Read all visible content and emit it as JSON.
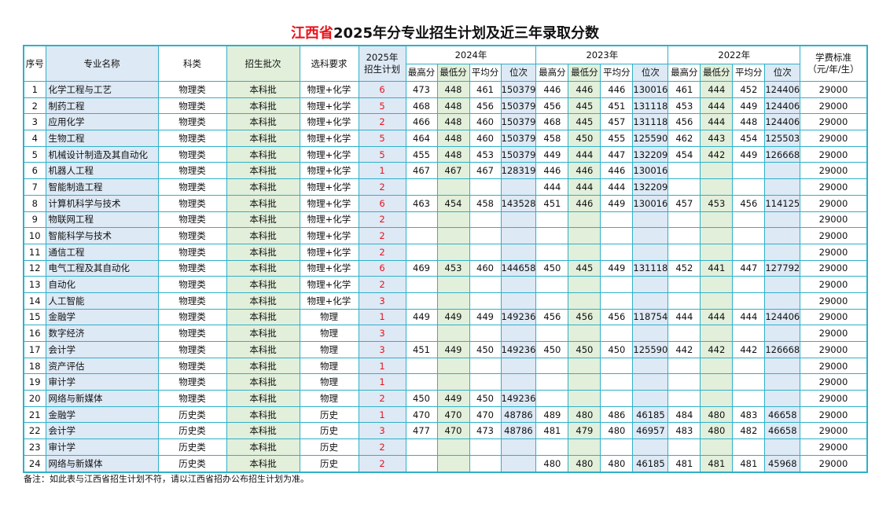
{
  "title": {
    "province": "江西省",
    "rest": "2025年分专业招生计划及近三年录取分数"
  },
  "headers": {
    "seq": "序号",
    "major": "专业名称",
    "category": "科类",
    "batch": "招生批次",
    "subjects": "选科要求",
    "plan_line1": "2025年",
    "plan_line2": "招生计划",
    "years": [
      "2024年",
      "2023年",
      "2022年"
    ],
    "sub": [
      "最高分",
      "最低分",
      "平均分",
      "位次"
    ],
    "fee_line1": "学费标准",
    "fee_line2": "（元/年/生）"
  },
  "colors": {
    "border": "#2fb0c8",
    "blue_fill": "#dde9f5",
    "green_fill": "#e2efda",
    "plan_text": "#e8141c"
  },
  "rows": [
    {
      "seq": "1",
      "major": "化学工程与工艺",
      "category": "物理类",
      "batch": "本科批",
      "subjects": "物理+化学",
      "plan": "6",
      "y2024": [
        "473",
        "448",
        "461",
        "150379"
      ],
      "y2023": [
        "446",
        "446",
        "446",
        "130016"
      ],
      "y2022": [
        "461",
        "444",
        "452",
        "124406"
      ],
      "fee": "29000"
    },
    {
      "seq": "2",
      "major": "制药工程",
      "category": "物理类",
      "batch": "本科批",
      "subjects": "物理+化学",
      "plan": "5",
      "y2024": [
        "468",
        "448",
        "456",
        "150379"
      ],
      "y2023": [
        "456",
        "445",
        "451",
        "131118"
      ],
      "y2022": [
        "453",
        "444",
        "449",
        "124406"
      ],
      "fee": "29000"
    },
    {
      "seq": "3",
      "major": "应用化学",
      "category": "物理类",
      "batch": "本科批",
      "subjects": "物理+化学",
      "plan": "2",
      "y2024": [
        "466",
        "448",
        "460",
        "150379"
      ],
      "y2023": [
        "468",
        "445",
        "457",
        "131118"
      ],
      "y2022": [
        "456",
        "444",
        "448",
        "124406"
      ],
      "fee": "29000"
    },
    {
      "seq": "4",
      "major": "生物工程",
      "category": "物理类",
      "batch": "本科批",
      "subjects": "物理+化学",
      "plan": "5",
      "y2024": [
        "464",
        "448",
        "460",
        "150379"
      ],
      "y2023": [
        "458",
        "450",
        "455",
        "125590"
      ],
      "y2022": [
        "462",
        "443",
        "454",
        "125503"
      ],
      "fee": "29000"
    },
    {
      "seq": "5",
      "major": "机械设计制造及其自动化",
      "category": "物理类",
      "batch": "本科批",
      "subjects": "物理+化学",
      "plan": "5",
      "y2024": [
        "455",
        "448",
        "453",
        "150379"
      ],
      "y2023": [
        "449",
        "444",
        "447",
        "132209"
      ],
      "y2022": [
        "454",
        "442",
        "449",
        "126668"
      ],
      "fee": "29000"
    },
    {
      "seq": "6",
      "major": "机器人工程",
      "category": "物理类",
      "batch": "本科批",
      "subjects": "物理+化学",
      "plan": "1",
      "y2024": [
        "467",
        "467",
        "467",
        "128319"
      ],
      "y2023": [
        "446",
        "446",
        "446",
        "130016"
      ],
      "y2022": [
        "",
        "",
        "",
        ""
      ],
      "fee": "29000"
    },
    {
      "seq": "7",
      "major": "智能制造工程",
      "category": "物理类",
      "batch": "本科批",
      "subjects": "物理+化学",
      "plan": "2",
      "y2024": [
        "",
        "",
        "",
        ""
      ],
      "y2023": [
        "444",
        "444",
        "444",
        "132209"
      ],
      "y2022": [
        "",
        "",
        "",
        ""
      ],
      "fee": "29000"
    },
    {
      "seq": "8",
      "major": "计算机科学与技术",
      "category": "物理类",
      "batch": "本科批",
      "subjects": "物理+化学",
      "plan": "6",
      "y2024": [
        "463",
        "454",
        "458",
        "143528"
      ],
      "y2023": [
        "451",
        "446",
        "449",
        "130016"
      ],
      "y2022": [
        "457",
        "453",
        "456",
        "114125"
      ],
      "fee": "29000"
    },
    {
      "seq": "9",
      "major": "物联网工程",
      "category": "物理类",
      "batch": "本科批",
      "subjects": "物理+化学",
      "plan": "2",
      "y2024": [
        "",
        "",
        "",
        ""
      ],
      "y2023": [
        "",
        "",
        "",
        ""
      ],
      "y2022": [
        "",
        "",
        "",
        ""
      ],
      "fee": "29000"
    },
    {
      "seq": "10",
      "major": "智能科学与技术",
      "category": "物理类",
      "batch": "本科批",
      "subjects": "物理+化学",
      "plan": "2",
      "y2024": [
        "",
        "",
        "",
        ""
      ],
      "y2023": [
        "",
        "",
        "",
        ""
      ],
      "y2022": [
        "",
        "",
        "",
        ""
      ],
      "fee": "29000"
    },
    {
      "seq": "11",
      "major": "通信工程",
      "category": "物理类",
      "batch": "本科批",
      "subjects": "物理+化学",
      "plan": "2",
      "y2024": [
        "",
        "",
        "",
        ""
      ],
      "y2023": [
        "",
        "",
        "",
        ""
      ],
      "y2022": [
        "",
        "",
        "",
        ""
      ],
      "fee": "29000"
    },
    {
      "seq": "12",
      "major": "电气工程及其自动化",
      "category": "物理类",
      "batch": "本科批",
      "subjects": "物理+化学",
      "plan": "6",
      "y2024": [
        "469",
        "453",
        "460",
        "144658"
      ],
      "y2023": [
        "450",
        "445",
        "449",
        "131118"
      ],
      "y2022": [
        "452",
        "441",
        "447",
        "127792"
      ],
      "fee": "29000"
    },
    {
      "seq": "13",
      "major": "自动化",
      "category": "物理类",
      "batch": "本科批",
      "subjects": "物理+化学",
      "plan": "2",
      "y2024": [
        "",
        "",
        "",
        ""
      ],
      "y2023": [
        "",
        "",
        "",
        ""
      ],
      "y2022": [
        "",
        "",
        "",
        ""
      ],
      "fee": "29000"
    },
    {
      "seq": "14",
      "major": "人工智能",
      "category": "物理类",
      "batch": "本科批",
      "subjects": "物理+化学",
      "plan": "3",
      "y2024": [
        "",
        "",
        "",
        ""
      ],
      "y2023": [
        "",
        "",
        "",
        ""
      ],
      "y2022": [
        "",
        "",
        "",
        ""
      ],
      "fee": "29000"
    },
    {
      "seq": "15",
      "major": "金融学",
      "category": "物理类",
      "batch": "本科批",
      "subjects": "物理",
      "plan": "1",
      "y2024": [
        "449",
        "449",
        "449",
        "149236"
      ],
      "y2023": [
        "456",
        "456",
        "456",
        "118754"
      ],
      "y2022": [
        "444",
        "444",
        "444",
        "124406"
      ],
      "fee": "29000"
    },
    {
      "seq": "16",
      "major": "数字经济",
      "category": "物理类",
      "batch": "本科批",
      "subjects": "物理",
      "plan": "3",
      "y2024": [
        "",
        "",
        "",
        ""
      ],
      "y2023": [
        "",
        "",
        "",
        ""
      ],
      "y2022": [
        "",
        "",
        "",
        ""
      ],
      "fee": "29000"
    },
    {
      "seq": "17",
      "major": "会计学",
      "category": "物理类",
      "batch": "本科批",
      "subjects": "物理",
      "plan": "3",
      "y2024": [
        "451",
        "449",
        "450",
        "149236"
      ],
      "y2023": [
        "450",
        "450",
        "450",
        "125590"
      ],
      "y2022": [
        "442",
        "442",
        "442",
        "126668"
      ],
      "fee": "29000"
    },
    {
      "seq": "18",
      "major": "资产评估",
      "category": "物理类",
      "batch": "本科批",
      "subjects": "物理",
      "plan": "1",
      "y2024": [
        "",
        "",
        "",
        ""
      ],
      "y2023": [
        "",
        "",
        "",
        ""
      ],
      "y2022": [
        "",
        "",
        "",
        ""
      ],
      "fee": "29000"
    },
    {
      "seq": "19",
      "major": "审计学",
      "category": "物理类",
      "batch": "本科批",
      "subjects": "物理",
      "plan": "1",
      "y2024": [
        "",
        "",
        "",
        ""
      ],
      "y2023": [
        "",
        "",
        "",
        ""
      ],
      "y2022": [
        "",
        "",
        "",
        ""
      ],
      "fee": "29000"
    },
    {
      "seq": "20",
      "major": "网络与新媒体",
      "category": "物理类",
      "batch": "本科批",
      "subjects": "物理",
      "plan": "2",
      "y2024": [
        "450",
        "449",
        "450",
        "149236"
      ],
      "y2023": [
        "",
        "",
        "",
        ""
      ],
      "y2022": [
        "",
        "",
        "",
        ""
      ],
      "fee": "29000"
    },
    {
      "seq": "21",
      "major": "金融学",
      "category": "历史类",
      "batch": "本科批",
      "subjects": "历史",
      "plan": "1",
      "y2024": [
        "470",
        "470",
        "470",
        "48786"
      ],
      "y2023": [
        "489",
        "480",
        "486",
        "46185"
      ],
      "y2022": [
        "484",
        "480",
        "483",
        "46658"
      ],
      "fee": "29000"
    },
    {
      "seq": "22",
      "major": "会计学",
      "category": "历史类",
      "batch": "本科批",
      "subjects": "历史",
      "plan": "3",
      "y2024": [
        "477",
        "470",
        "473",
        "48786"
      ],
      "y2023": [
        "481",
        "479",
        "480",
        "46957"
      ],
      "y2022": [
        "483",
        "480",
        "482",
        "46658"
      ],
      "fee": "29000"
    },
    {
      "seq": "23",
      "major": "审计学",
      "category": "历史类",
      "batch": "本科批",
      "subjects": "历史",
      "plan": "2",
      "y2024": [
        "",
        "",
        "",
        ""
      ],
      "y2023": [
        "",
        "",
        "",
        ""
      ],
      "y2022": [
        "",
        "",
        "",
        ""
      ],
      "fee": "29000"
    },
    {
      "seq": "24",
      "major": "网络与新媒体",
      "category": "历史类",
      "batch": "本科批",
      "subjects": "历史",
      "plan": "2",
      "y2024": [
        "",
        "",
        "",
        ""
      ],
      "y2023": [
        "480",
        "480",
        "480",
        "46185"
      ],
      "y2022": [
        "481",
        "481",
        "481",
        "45968"
      ],
      "fee": "29000"
    }
  ],
  "note": "备注：如此表与江西省招生计划不符，请以江西省招办公布招生计划为准。"
}
